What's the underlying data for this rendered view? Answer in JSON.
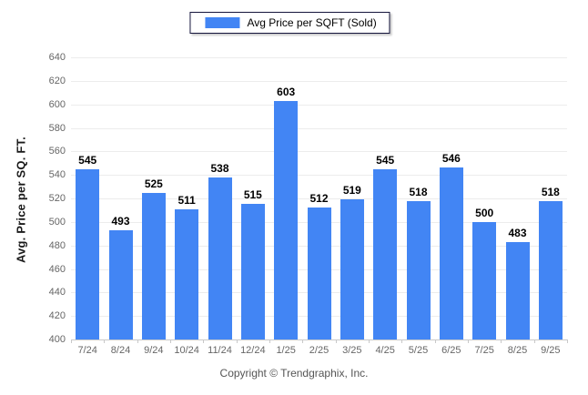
{
  "legend": {
    "label": "Avg Price per SQFT (Sold)"
  },
  "footer": "Copyright © Trendgraphix, Inc.",
  "chart_data": {
    "type": "bar",
    "title": "",
    "categories": [
      "7/24",
      "8/24",
      "9/24",
      "10/24",
      "11/24",
      "12/24",
      "1/25",
      "2/25",
      "3/25",
      "4/25",
      "5/25",
      "6/25",
      "7/25",
      "8/25",
      "9/25"
    ],
    "values": [
      545,
      493,
      525,
      511,
      538,
      515,
      603,
      512,
      519,
      545,
      518,
      546,
      500,
      483,
      518
    ],
    "series_name": "Avg Price per SQFT (Sold)",
    "xlabel": "",
    "ylabel": "Avg. Price per SQ. FT.",
    "ylim": [
      400,
      640
    ],
    "ytick_step": 20,
    "grid": true,
    "legend_position": "top-center",
    "bar_color": "#4285f4",
    "value_labels": true
  }
}
